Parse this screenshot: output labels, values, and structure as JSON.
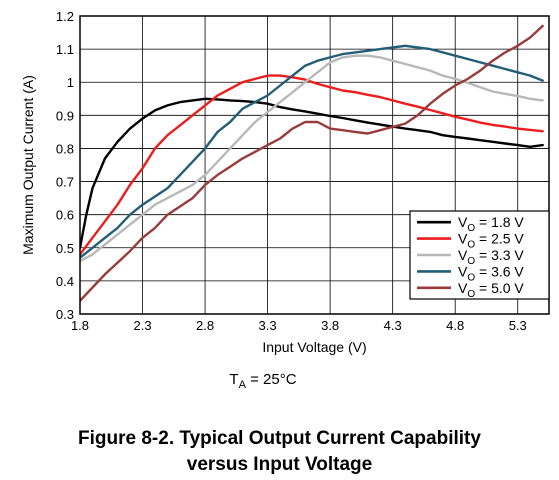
{
  "chart_data": {
    "type": "line",
    "xlabel": "Input Voltage (V)",
    "ylabel": "Maximum Output Current (A)",
    "xlim": [
      1.8,
      5.55
    ],
    "ylim": [
      0.3,
      1.2
    ],
    "xticks": [
      "1.8",
      "2.3",
      "2.8",
      "3.3",
      "3.8",
      "4.3",
      "4.8",
      "5.3"
    ],
    "yticks": [
      "0.3",
      "0.4",
      "0.5",
      "0.6",
      "0.7",
      "0.8",
      "0.9",
      "1",
      "1.1",
      "1.2"
    ],
    "grid": true,
    "legend_position": "bottom-right",
    "series": [
      {
        "name": "V₀ = 1.8 V",
        "label_main": "V",
        "label_sub": "O",
        "label_rest": " = 1.8 V",
        "color": "#000000",
        "x": [
          1.8,
          1.85,
          1.9,
          2.0,
          2.1,
          2.2,
          2.3,
          2.4,
          2.5,
          2.6,
          2.7,
          2.8,
          2.9,
          3.0,
          3.1,
          3.2,
          3.3,
          3.4,
          3.5,
          3.6,
          3.7,
          3.8,
          3.9,
          4.0,
          4.1,
          4.2,
          4.3,
          4.4,
          4.5,
          4.6,
          4.7,
          4.8,
          4.9,
          5.0,
          5.1,
          5.2,
          5.3,
          5.4,
          5.5
        ],
        "y": [
          0.5,
          0.6,
          0.68,
          0.77,
          0.82,
          0.86,
          0.89,
          0.915,
          0.93,
          0.94,
          0.945,
          0.95,
          0.948,
          0.945,
          0.943,
          0.94,
          0.935,
          0.925,
          0.918,
          0.912,
          0.905,
          0.898,
          0.892,
          0.885,
          0.878,
          0.872,
          0.866,
          0.86,
          0.855,
          0.85,
          0.84,
          0.835,
          0.83,
          0.825,
          0.82,
          0.815,
          0.81,
          0.805,
          0.81
        ]
      },
      {
        "name": "V₀ = 2.5 V",
        "label_main": "V",
        "label_sub": "O",
        "label_rest": " = 2.5 V",
        "color": "#ee1c1c",
        "x": [
          1.8,
          1.9,
          2.0,
          2.1,
          2.2,
          2.3,
          2.4,
          2.5,
          2.6,
          2.7,
          2.8,
          2.9,
          3.0,
          3.1,
          3.2,
          3.3,
          3.4,
          3.5,
          3.6,
          3.7,
          3.8,
          3.9,
          4.0,
          4.1,
          4.2,
          4.3,
          4.4,
          4.5,
          4.6,
          4.7,
          4.8,
          4.9,
          5.0,
          5.1,
          5.2,
          5.3,
          5.4,
          5.5
        ],
        "y": [
          0.48,
          0.53,
          0.58,
          0.63,
          0.69,
          0.74,
          0.8,
          0.84,
          0.87,
          0.9,
          0.93,
          0.96,
          0.98,
          1.0,
          1.01,
          1.02,
          1.02,
          1.015,
          1.008,
          0.995,
          0.985,
          0.975,
          0.97,
          0.962,
          0.955,
          0.945,
          0.935,
          0.926,
          0.916,
          0.906,
          0.896,
          0.887,
          0.878,
          0.871,
          0.866,
          0.86,
          0.856,
          0.852
        ]
      },
      {
        "name": "V₀ = 3.3 V",
        "label_main": "V",
        "label_sub": "O",
        "label_rest": " = 3.3 V",
        "color": "#b8b8b8",
        "x": [
          1.8,
          1.9,
          2.0,
          2.1,
          2.2,
          2.3,
          2.4,
          2.5,
          2.6,
          2.7,
          2.8,
          2.9,
          3.0,
          3.1,
          3.2,
          3.3,
          3.4,
          3.5,
          3.6,
          3.7,
          3.8,
          3.9,
          4.0,
          4.1,
          4.2,
          4.3,
          4.4,
          4.5,
          4.6,
          4.7,
          4.8,
          4.9,
          5.0,
          5.1,
          5.2,
          5.3,
          5.4,
          5.5
        ],
        "y": [
          0.46,
          0.48,
          0.51,
          0.54,
          0.57,
          0.6,
          0.63,
          0.65,
          0.67,
          0.69,
          0.72,
          0.76,
          0.8,
          0.84,
          0.88,
          0.91,
          0.94,
          0.97,
          1.0,
          1.03,
          1.06,
          1.075,
          1.08,
          1.08,
          1.075,
          1.065,
          1.055,
          1.045,
          1.035,
          1.02,
          1.01,
          0.998,
          0.985,
          0.972,
          0.965,
          0.958,
          0.95,
          0.945
        ]
      },
      {
        "name": "V₀ = 3.6 V",
        "label_main": "V",
        "label_sub": "O",
        "label_rest": " = 3.6 V",
        "color": "#235e78",
        "x": [
          1.8,
          1.9,
          2.0,
          2.1,
          2.2,
          2.3,
          2.4,
          2.5,
          2.6,
          2.7,
          2.8,
          2.9,
          3.0,
          3.1,
          3.2,
          3.3,
          3.4,
          3.5,
          3.6,
          3.7,
          3.8,
          3.9,
          4.0,
          4.1,
          4.2,
          4.3,
          4.4,
          4.5,
          4.6,
          4.7,
          4.8,
          4.9,
          5.0,
          5.1,
          5.2,
          5.3,
          5.4,
          5.5
        ],
        "y": [
          0.47,
          0.5,
          0.53,
          0.56,
          0.6,
          0.63,
          0.655,
          0.68,
          0.72,
          0.76,
          0.8,
          0.85,
          0.88,
          0.92,
          0.94,
          0.96,
          0.99,
          1.02,
          1.05,
          1.065,
          1.075,
          1.085,
          1.09,
          1.095,
          1.1,
          1.105,
          1.11,
          1.105,
          1.1,
          1.09,
          1.08,
          1.07,
          1.06,
          1.05,
          1.04,
          1.03,
          1.02,
          1.005
        ]
      },
      {
        "name": "V₀ = 5.0 V",
        "label_main": "V",
        "label_sub": "O",
        "label_rest": " = 5.0 V",
        "color": "#9a3b3b",
        "x": [
          1.8,
          1.9,
          2.0,
          2.1,
          2.2,
          2.3,
          2.4,
          2.5,
          2.6,
          2.7,
          2.8,
          2.9,
          3.0,
          3.1,
          3.2,
          3.3,
          3.4,
          3.5,
          3.6,
          3.7,
          3.8,
          3.9,
          4.0,
          4.1,
          4.2,
          4.3,
          4.4,
          4.5,
          4.6,
          4.7,
          4.8,
          4.9,
          5.0,
          5.1,
          5.2,
          5.3,
          5.4,
          5.5
        ],
        "y": [
          0.34,
          0.38,
          0.42,
          0.455,
          0.49,
          0.53,
          0.56,
          0.6,
          0.625,
          0.65,
          0.69,
          0.72,
          0.745,
          0.77,
          0.79,
          0.81,
          0.83,
          0.86,
          0.88,
          0.88,
          0.86,
          0.855,
          0.85,
          0.845,
          0.855,
          0.865,
          0.875,
          0.9,
          0.935,
          0.965,
          0.99,
          1.01,
          1.035,
          1.065,
          1.09,
          1.11,
          1.135,
          1.17
        ]
      }
    ],
    "condition": {
      "main": "T",
      "sub": "A",
      "rest": " = 25°C"
    }
  },
  "caption": {
    "line1": "Figure 8-2. Typical Output Current Capability",
    "line2": "versus Input Voltage"
  }
}
